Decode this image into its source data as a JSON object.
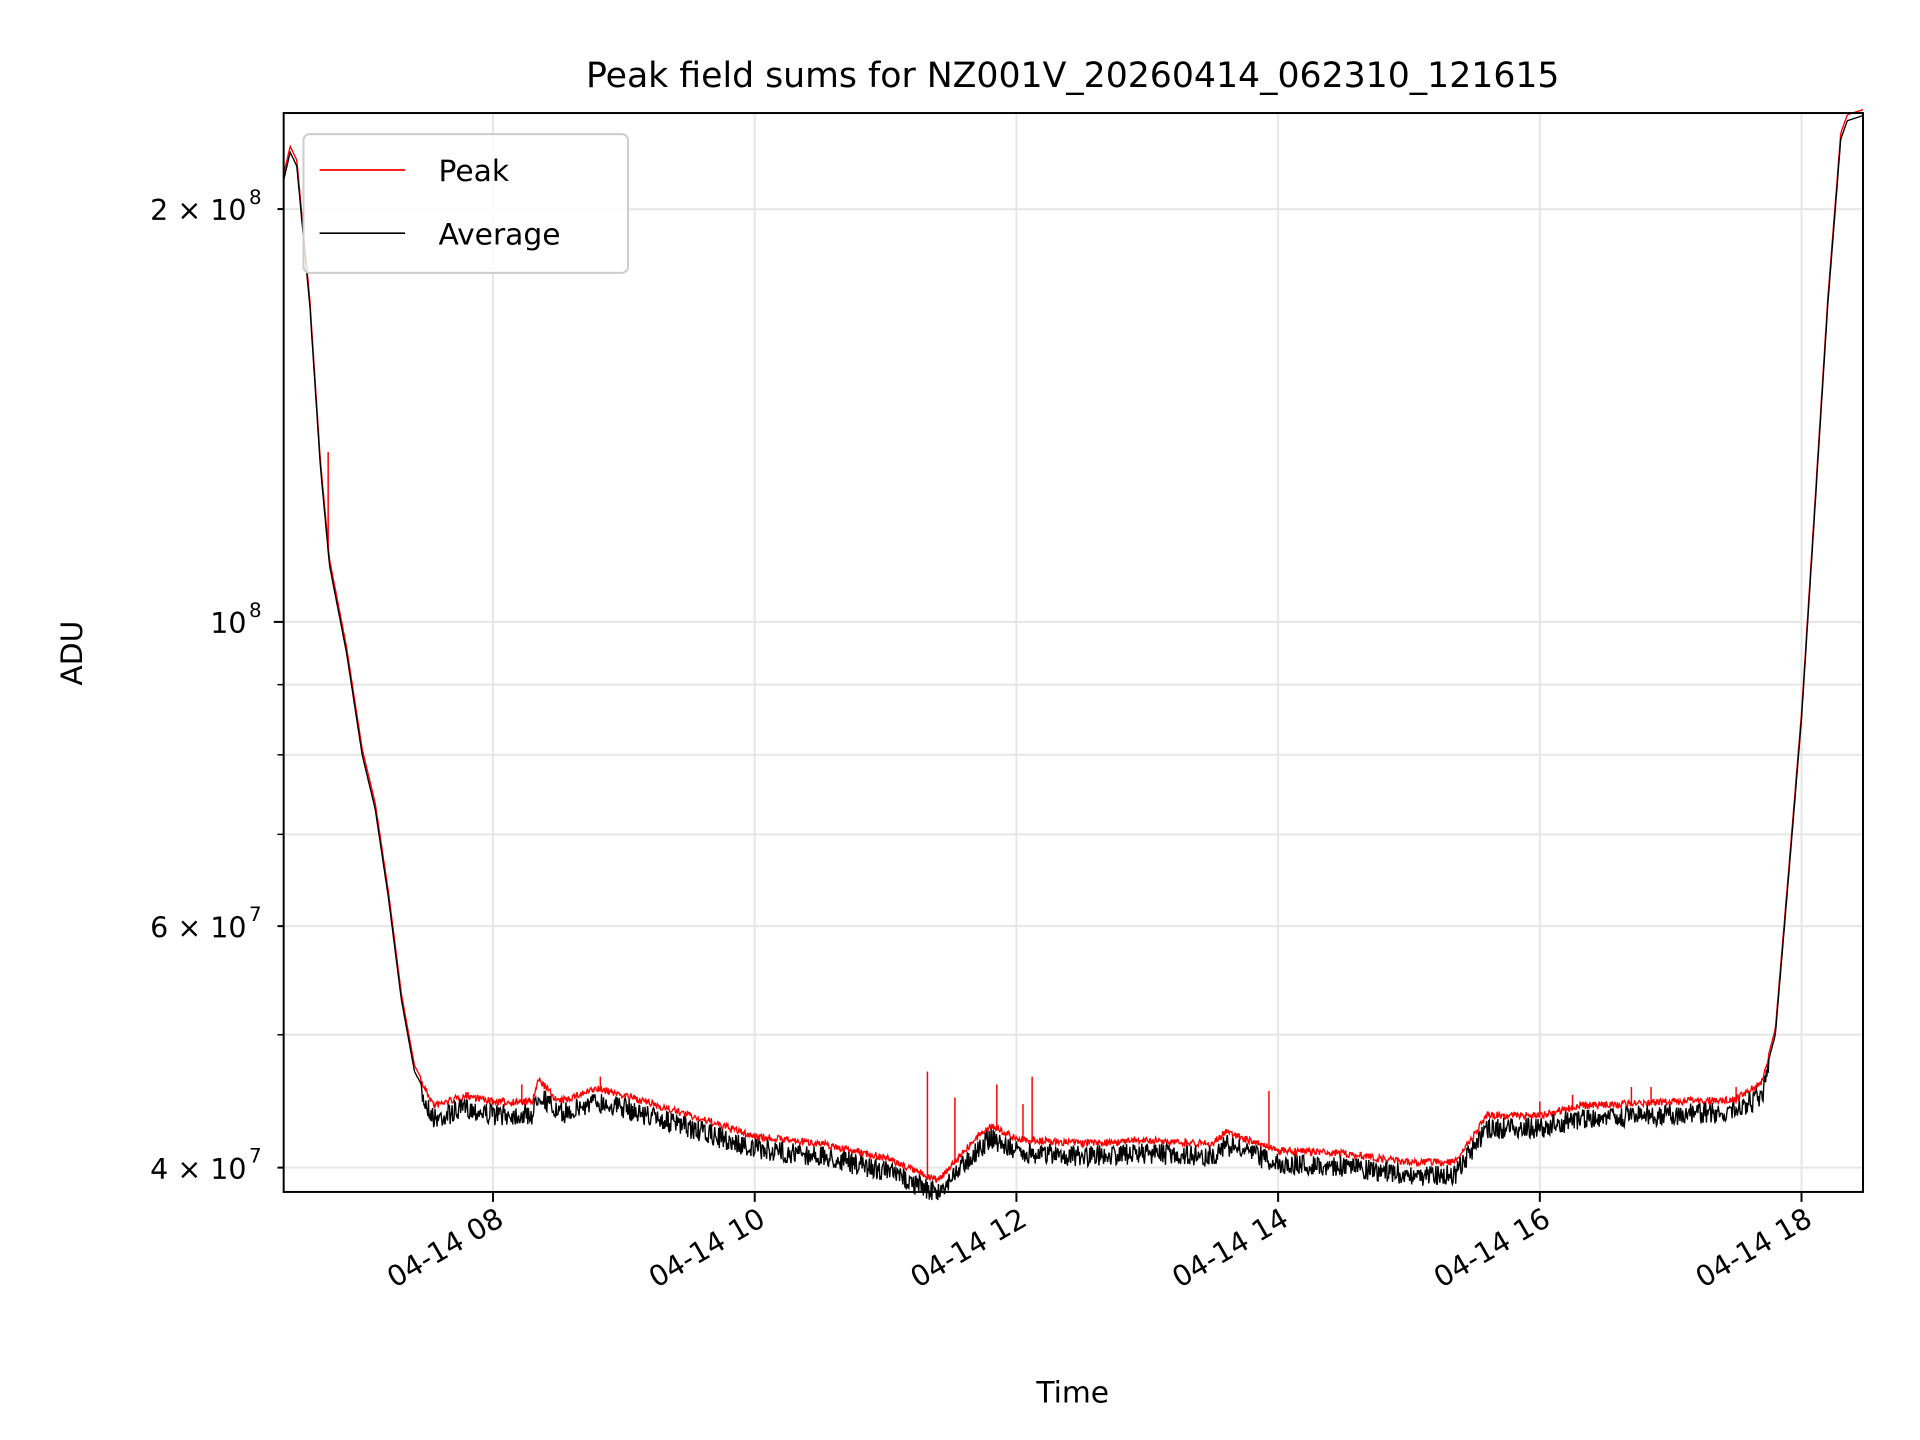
{
  "chart_data": {
    "type": "line",
    "title": "Peak field sums for NZ001V_20260414_062310_121615",
    "xlabel": "Time",
    "ylabel": "ADU",
    "yscale": "log",
    "x_units": "hours on 2026-04-14",
    "y_units": "1e7 ADU",
    "xlim": [
      6.4,
      18.47
    ],
    "ylim": [
      3.84,
      23.5
    ],
    "grid": true,
    "legend_position": "top-left",
    "x_ticks": [
      {
        "value": 8,
        "label": "04-14 08"
      },
      {
        "value": 10,
        "label": "04-14 10"
      },
      {
        "value": 12,
        "label": "04-14 12"
      },
      {
        "value": 14,
        "label": "04-14 14"
      },
      {
        "value": 16,
        "label": "04-14 16"
      },
      {
        "value": 18,
        "label": "04-14 18"
      }
    ],
    "y_ticks": [
      {
        "value": 20,
        "mant": "2 × 10",
        "exp": "8"
      },
      {
        "value": 10,
        "mant": "10",
        "exp": "8"
      },
      {
        "value": 6,
        "mant": "6 × 10",
        "exp": "7"
      },
      {
        "value": 4,
        "mant": "4 × 10",
        "exp": "7"
      }
    ],
    "y_minor_gridlines": [
      9,
      8,
      7,
      5,
      3
    ],
    "series": [
      {
        "name": "Peak",
        "color": "#ff0000",
        "offset_fraction": 0.01,
        "spikes": [
          [
            6.74,
            13.3
          ],
          [
            8.22,
            4.6
          ],
          [
            8.82,
            4.66
          ],
          [
            11.32,
            4.7
          ],
          [
            11.53,
            4.5
          ],
          [
            11.85,
            4.6
          ],
          [
            12.12,
            4.66
          ],
          [
            12.05,
            4.45
          ],
          [
            13.93,
            4.55
          ],
          [
            16.0,
            4.47
          ],
          [
            16.25,
            4.52
          ],
          [
            16.7,
            4.58
          ],
          [
            16.85,
            4.58
          ],
          [
            17.5,
            4.58
          ]
        ]
      },
      {
        "name": "Average",
        "color": "#000000",
        "points": [
          [
            6.4,
            21.0
          ],
          [
            6.45,
            22.0
          ],
          [
            6.5,
            21.5
          ],
          [
            6.6,
            17.0
          ],
          [
            6.68,
            13.0
          ],
          [
            6.75,
            11.0
          ],
          [
            6.88,
            9.5
          ],
          [
            7.0,
            8.0
          ],
          [
            7.1,
            7.3
          ],
          [
            7.2,
            6.3
          ],
          [
            7.3,
            5.3
          ],
          [
            7.4,
            4.7
          ],
          [
            7.55,
            4.42
          ],
          [
            7.8,
            4.5
          ],
          [
            8.0,
            4.45
          ],
          [
            8.3,
            4.45
          ],
          [
            8.35,
            4.62
          ],
          [
            8.5,
            4.45
          ],
          [
            8.8,
            4.55
          ],
          [
            9.0,
            4.5
          ],
          [
            9.5,
            4.35
          ],
          [
            10.0,
            4.2
          ],
          [
            10.5,
            4.15
          ],
          [
            11.0,
            4.05
          ],
          [
            11.4,
            3.9
          ],
          [
            11.6,
            4.1
          ],
          [
            11.8,
            4.28
          ],
          [
            12.0,
            4.18
          ],
          [
            12.5,
            4.15
          ],
          [
            13.0,
            4.17
          ],
          [
            13.5,
            4.15
          ],
          [
            13.6,
            4.23
          ],
          [
            14.0,
            4.1
          ],
          [
            14.5,
            4.08
          ],
          [
            15.0,
            4.02
          ],
          [
            15.35,
            4.02
          ],
          [
            15.6,
            4.35
          ],
          [
            16.0,
            4.35
          ],
          [
            16.3,
            4.42
          ],
          [
            17.0,
            4.45
          ],
          [
            17.5,
            4.47
          ],
          [
            17.7,
            4.6
          ],
          [
            17.8,
            5.0
          ],
          [
            17.9,
            6.5
          ],
          [
            18.0,
            8.5
          ],
          [
            18.1,
            12.0
          ],
          [
            18.2,
            17.0
          ],
          [
            18.3,
            22.5
          ],
          [
            18.35,
            23.2
          ],
          [
            18.47,
            23.4
          ]
        ]
      }
    ]
  }
}
